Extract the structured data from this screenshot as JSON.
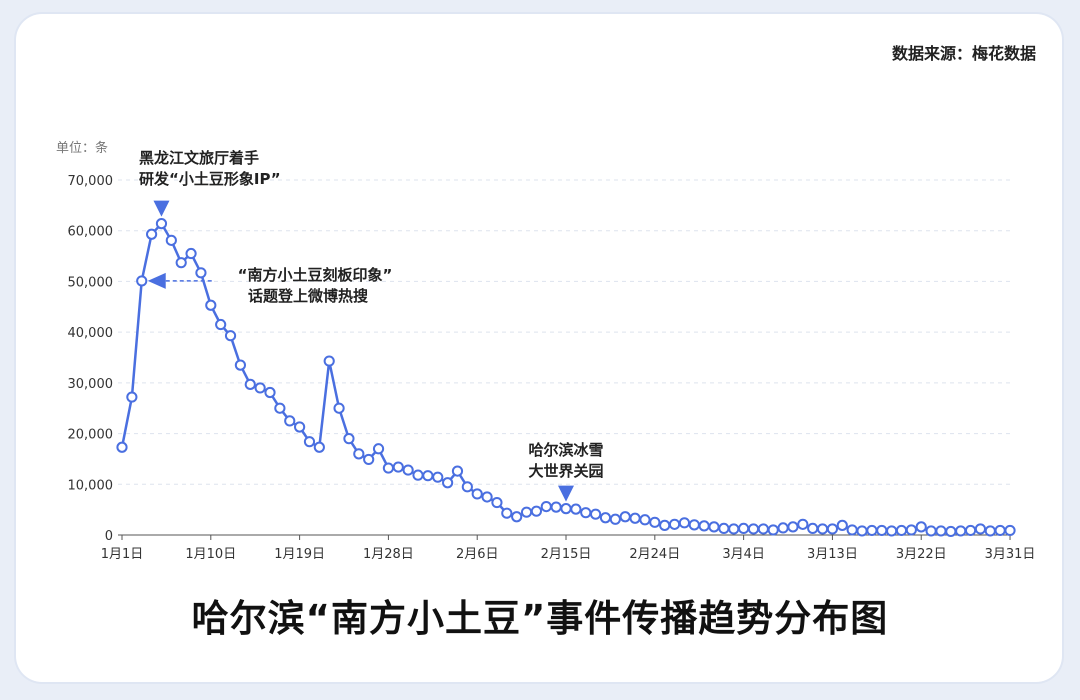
{
  "source_label": "数据来源：梅花数据",
  "chart_data": {
    "type": "line",
    "title": "哈尔滨“南方小土豆”事件传播趋势分布图",
    "unit_label": "单位：条",
    "ylim": [
      0,
      70000
    ],
    "y_ticks": [
      "0",
      "10,000",
      "20,000",
      "30,000",
      "40,000",
      "50,000",
      "60,000",
      "70,000"
    ],
    "x_tick_labels": [
      "1月1日",
      "1月10日",
      "1月19日",
      "1月28日",
      "2月6日",
      "2月15日",
      "2月24日",
      "3月4日",
      "3月13日",
      "3月22日",
      "3月31日"
    ],
    "grid": "horizontal-dashed",
    "color": "#4a6fe0",
    "series": [
      {
        "values": [
          17300,
          27200,
          50100,
          59300,
          61400,
          58100,
          53700,
          55500,
          51700,
          45300,
          41500,
          39300,
          33500,
          29700,
          29000,
          28100,
          25000,
          22500,
          21300,
          18400,
          17300,
          34300,
          25000,
          19000,
          16000,
          14900,
          17000,
          13200,
          13400,
          12800,
          11800,
          11700,
          11400,
          10300,
          12600,
          9500,
          8100,
          7500,
          6400,
          4300,
          3600,
          4500,
          4700,
          5600,
          5500,
          5200,
          5100,
          4400,
          4100,
          3400,
          3100,
          3600,
          3300,
          3000,
          2500,
          1900,
          2100,
          2400,
          2000,
          1800,
          1600,
          1300,
          1200,
          1300,
          1200,
          1200,
          1000,
          1400,
          1600,
          2100,
          1300,
          1200,
          1200,
          1900,
          1000,
          800,
          900,
          900,
          800,
          900,
          1000,
          1600,
          800,
          800,
          700,
          800,
          900,
          1200,
          800,
          900,
          900
        ]
      }
    ],
    "annotations": [
      {
        "lines": [
          "黑龙江文旅厅着手",
          "研发“小土豆形象IP”"
        ],
        "point_index": 4,
        "marker": "down-triangle"
      },
      {
        "lines": [
          "“南方小土豆刻板印象”",
          "话题登上微博热搜"
        ],
        "point_index": 2,
        "marker": "left-arrow"
      },
      {
        "lines": [
          "哈尔滨冰雪",
          "大世界关园"
        ],
        "point_index": 45,
        "marker": "down-triangle"
      }
    ]
  }
}
